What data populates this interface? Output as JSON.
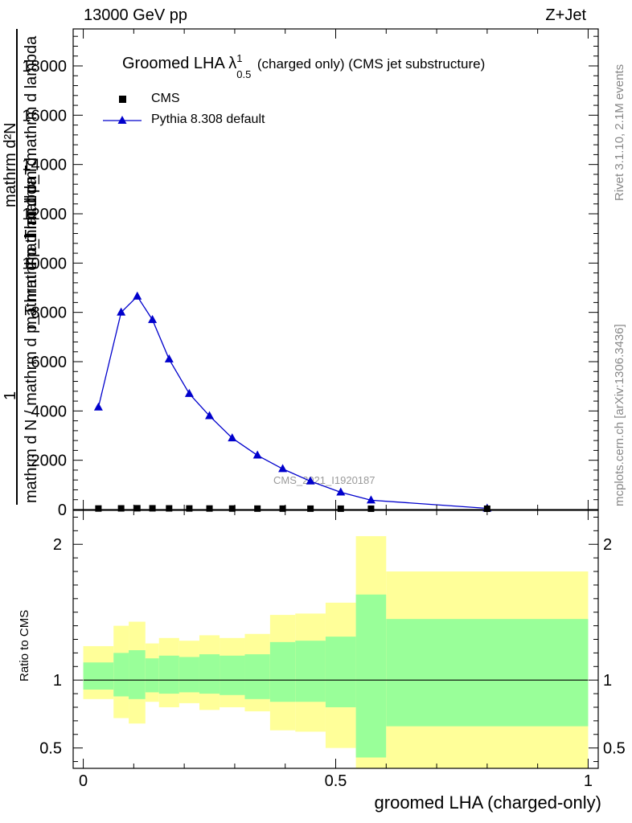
{
  "header": {
    "left": "13000 GeV pp",
    "right": "Z+Jet"
  },
  "side": {
    "rivet": "Rivet 3.1.10,  2.1M events",
    "mcplots": "mcplots.cern.ch [arXiv:1306.3436]"
  },
  "plot_title": {
    "main": "Groomed LHA",
    "lambda": "λ",
    "sup": "1",
    "sub": "0.5",
    "rest": "(charged only) (CMS jet substructure)"
  },
  "watermark": "CMS_2021_I1920187",
  "legend": {
    "cms": "CMS",
    "pythia": "Pythia 8.308 default"
  },
  "ylabel_main": {
    "numerator": "mathrm d²N",
    "denominator": "mathrm d N / mathrm d p_T mathrm d lambda",
    "one": "1",
    "overlap1": "mathrm d p_T mathrm d lambda",
    "overlap2": "mathrm d p_T mathrm d"
  },
  "ylabel_ratio": "Ratio to CMS",
  "xlabel": "groomed LHA (charged-only)",
  "colors": {
    "pythia": "#0000cc",
    "cms": "#000000",
    "band_inner": "#99ff99",
    "band_outer": "#ffff99"
  },
  "chart_data": [
    {
      "type": "line",
      "title": "Groomed LHA λ^1_0.5 (charged only) (CMS jet substructure)",
      "xlim": [
        -0.02,
        1.02
      ],
      "ylim": [
        0,
        19500
      ],
      "yticks": [
        0,
        2000,
        4000,
        6000,
        8000,
        10000,
        12000,
        14000,
        16000,
        18000
      ],
      "ytick_labels": [
        "0",
        "2000",
        "4000",
        "6000",
        "8000",
        "10000",
        "12000",
        "14000",
        "16000",
        "18000"
      ],
      "series": [
        {
          "name": "CMS",
          "marker": "square",
          "x": [
            0.03,
            0.075,
            0.107,
            0.137,
            0.17,
            0.21,
            0.25,
            0.295,
            0.345,
            0.395,
            0.45,
            0.51,
            0.57,
            0.8
          ],
          "y": [
            10,
            15,
            20,
            18,
            15,
            12,
            10,
            8,
            6,
            5,
            4,
            3,
            2,
            0
          ]
        },
        {
          "name": "Pythia 8.308 default",
          "marker": "triangle",
          "x": [
            0.03,
            0.075,
            0.107,
            0.137,
            0.17,
            0.21,
            0.25,
            0.295,
            0.345,
            0.395,
            0.45,
            0.51,
            0.57,
            0.8
          ],
          "y": [
            4150,
            8000,
            8650,
            7700,
            6100,
            4700,
            3800,
            2900,
            2200,
            1650,
            1150,
            700,
            380,
            50
          ]
        }
      ]
    },
    {
      "type": "area",
      "ylabel": "Ratio to CMS",
      "xlabel": "groomed LHA (charged-only)",
      "xlim": [
        -0.02,
        1.02
      ],
      "xticks": [
        0,
        0.5,
        1
      ],
      "xtick_labels": [
        "0",
        "0.5",
        "1"
      ],
      "ylim": [
        0.35,
        2.25
      ],
      "yticks": [
        0.5,
        1,
        2
      ],
      "ytick_labels": [
        "0.5",
        "1",
        "2"
      ],
      "reference_line": 1,
      "bins": {
        "edges": [
          0.0,
          0.06,
          0.09,
          0.123,
          0.15,
          0.19,
          0.23,
          0.27,
          0.32,
          0.37,
          0.42,
          0.48,
          0.54,
          0.6,
          1.0
        ],
        "inner_lo": [
          0.93,
          0.88,
          0.86,
          0.91,
          0.9,
          0.91,
          0.9,
          0.89,
          0.86,
          0.84,
          0.84,
          0.8,
          0.43,
          0.66
        ],
        "inner_hi": [
          1.13,
          1.2,
          1.22,
          1.16,
          1.18,
          1.17,
          1.19,
          1.18,
          1.19,
          1.28,
          1.29,
          1.32,
          1.63,
          1.45
        ],
        "outer_lo": [
          0.86,
          0.72,
          0.68,
          0.84,
          0.8,
          0.83,
          0.78,
          0.8,
          0.77,
          0.63,
          0.62,
          0.5,
          0.35,
          0.35
        ],
        "outer_hi": [
          1.25,
          1.4,
          1.43,
          1.27,
          1.31,
          1.29,
          1.33,
          1.31,
          1.34,
          1.48,
          1.49,
          1.57,
          2.06,
          1.8
        ]
      }
    }
  ]
}
